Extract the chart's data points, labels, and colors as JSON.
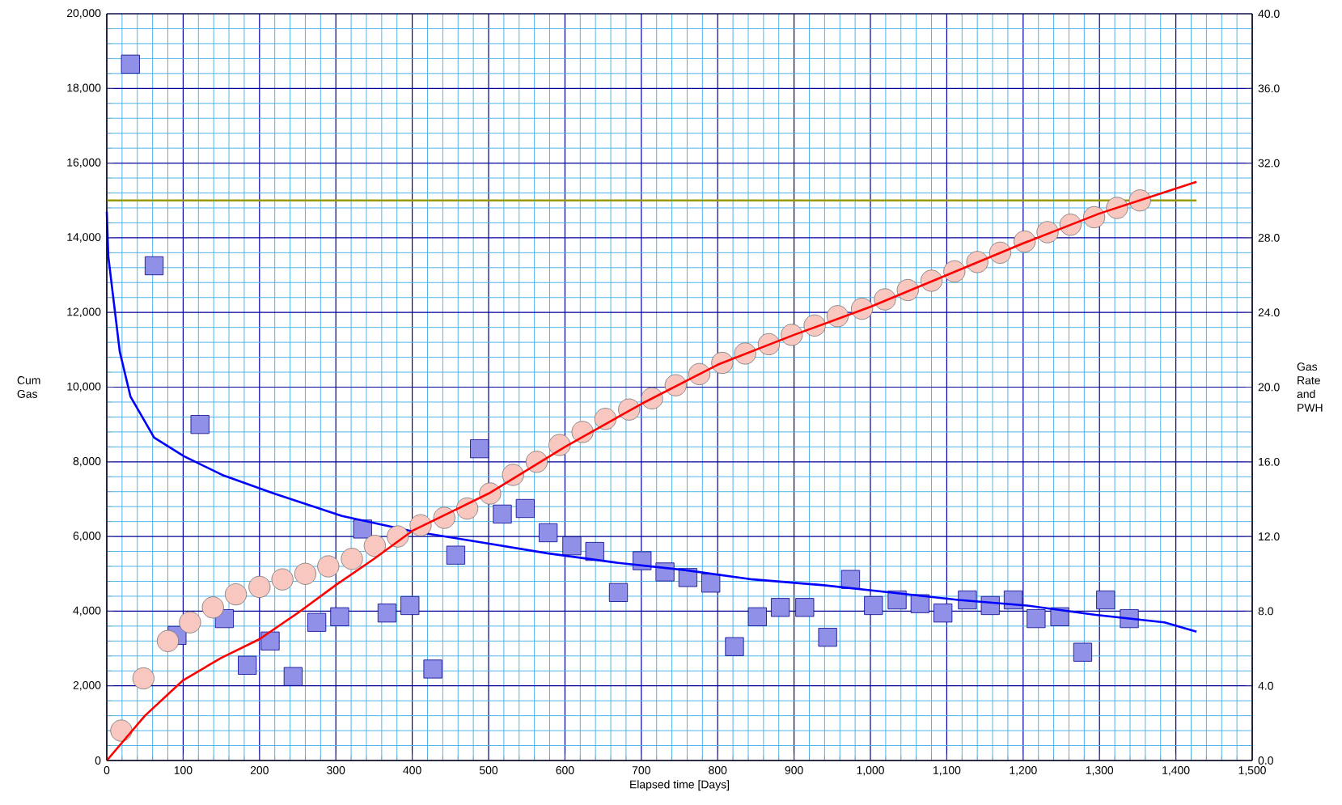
{
  "chart_data": {
    "type": "scatter",
    "xlabel": "Elapsed time [Days]",
    "ylabel": "Cum Gas",
    "y2label": "Gas Rate and PWH",
    "xlim": [
      0,
      1500
    ],
    "ylim": [
      0,
      20000
    ],
    "y2lim": [
      0,
      40
    ],
    "xticks": [
      0,
      {
        "value": 20,
        "label": null
      },
      {
        "value": 40,
        "label": null
      },
      {
        "value": 60,
        "label": null
      },
      {
        "value": 80,
        "label": null
      },
      100,
      {
        "value": 120,
        "label": null
      },
      {
        "value": 140,
        "label": null
      },
      {
        "value": 160,
        "label": null
      },
      {
        "value": 180,
        "label": null
      },
      200,
      {
        "value": 220,
        "label": null
      },
      {
        "value": 240,
        "label": null
      },
      {
        "value": 260,
        "label": null
      },
      {
        "value": 280,
        "label": null
      },
      300,
      {
        "value": 320,
        "label": null
      },
      {
        "value": 340,
        "label": null
      },
      {
        "value": 360,
        "label": null
      },
      {
        "value": 380,
        "label": null
      },
      400,
      {
        "value": 420,
        "label": null
      },
      {
        "value": 440,
        "label": null
      },
      {
        "value": 460,
        "label": null
      },
      {
        "value": 480,
        "label": null
      },
      500,
      {
        "value": 520,
        "label": null
      },
      {
        "value": 540,
        "label": null
      },
      {
        "value": 560,
        "label": null
      },
      {
        "value": 580,
        "label": null
      },
      600,
      {
        "value": 620,
        "label": null
      },
      {
        "value": 640,
        "label": null
      },
      {
        "value": 660,
        "label": null
      },
      {
        "value": 680,
        "label": null
      },
      700,
      {
        "value": 720,
        "label": null
      },
      {
        "value": 740,
        "label": null
      },
      {
        "value": 760,
        "label": null
      },
      {
        "value": 780,
        "label": null
      },
      800,
      {
        "value": 820,
        "label": null
      },
      {
        "value": 840,
        "label": null
      },
      {
        "value": 860,
        "label": null
      },
      {
        "value": 880,
        "label": null
      },
      900,
      {
        "value": 920,
        "label": null
      },
      {
        "value": 940,
        "label": null
      },
      {
        "value": 960,
        "label": null
      },
      {
        "value": 980,
        "label": null
      },
      {
        "value": 1000,
        "label": "1,000"
      },
      {
        "value": 1020,
        "label": null
      },
      {
        "value": 1040,
        "label": null
      },
      {
        "value": 1060,
        "label": null
      },
      {
        "value": 1080,
        "label": null
      },
      {
        "value": 1100,
        "label": "1,100"
      },
      {
        "value": 1120,
        "label": null
      },
      {
        "value": 1140,
        "label": null
      },
      {
        "value": 1160,
        "label": null
      },
      {
        "value": 1180,
        "label": null
      },
      {
        "value": 1200,
        "label": "1,200"
      },
      {
        "value": 1220,
        "label": null
      },
      {
        "value": 1240,
        "label": null
      },
      {
        "value": 1260,
        "label": null
      },
      {
        "value": 1280,
        "label": null
      },
      {
        "value": 1300,
        "label": "1,300"
      },
      {
        "value": 1320,
        "label": null
      },
      {
        "value": 1340,
        "label": null
      },
      {
        "value": 1360,
        "label": null
      },
      {
        "value": 1380,
        "label": null
      },
      {
        "value": 1400,
        "label": "1,400"
      },
      {
        "value": 1420,
        "label": null
      },
      {
        "value": 1440,
        "label": null
      },
      {
        "value": 1460,
        "label": null
      },
      {
        "value": 1480,
        "label": null
      },
      {
        "value": 1500,
        "label": "1,500"
      }
    ],
    "yticks": [
      0,
      {
        "value": 400,
        "label": null
      },
      {
        "value": 800,
        "label": null
      },
      {
        "value": 1200,
        "label": null
      },
      {
        "value": 1600,
        "label": null
      },
      {
        "value": 2000,
        "label": "2,000"
      },
      {
        "value": 2400,
        "label": null
      },
      {
        "value": 2800,
        "label": null
      },
      {
        "value": 3200,
        "label": null
      },
      {
        "value": 3600,
        "label": null
      },
      {
        "value": 4000,
        "label": "4,000"
      },
      {
        "value": 4400,
        "label": null
      },
      {
        "value": 4800,
        "label": null
      },
      {
        "value": 5200,
        "label": null
      },
      {
        "value": 5600,
        "label": null
      },
      {
        "value": 6000,
        "label": "6,000"
      },
      {
        "value": 6400,
        "label": null
      },
      {
        "value": 6800,
        "label": null
      },
      {
        "value": 7200,
        "label": null
      },
      {
        "value": 7600,
        "label": null
      },
      {
        "value": 8000,
        "label": "8,000"
      },
      {
        "value": 8400,
        "label": null
      },
      {
        "value": 8800,
        "label": null
      },
      {
        "value": 9200,
        "label": null
      },
      {
        "value": 9600,
        "label": null
      },
      {
        "value": 10000,
        "label": "10,000"
      },
      {
        "value": 10400,
        "label": null
      },
      {
        "value": 10800,
        "label": null
      },
      {
        "value": 11200,
        "label": null
      },
      {
        "value": 11600,
        "label": null
      },
      {
        "value": 12000,
        "label": "12,000"
      },
      {
        "value": 12400,
        "label": null
      },
      {
        "value": 12800,
        "label": null
      },
      {
        "value": 13200,
        "label": null
      },
      {
        "value": 13600,
        "label": null
      },
      {
        "value": 14000,
        "label": "14,000"
      },
      {
        "value": 14400,
        "label": null
      },
      {
        "value": 14800,
        "label": null
      },
      {
        "value": 15200,
        "label": null
      },
      {
        "value": 15600,
        "label": null
      },
      {
        "value": 16000,
        "label": "16,000"
      },
      {
        "value": 16400,
        "label": null
      },
      {
        "value": 16800,
        "label": null
      },
      {
        "value": 17200,
        "label": null
      },
      {
        "value": 17600,
        "label": null
      },
      {
        "value": 18000,
        "label": "18,000"
      },
      {
        "value": 18400,
        "label": null
      },
      {
        "value": 18800,
        "label": null
      },
      {
        "value": 19200,
        "label": null
      },
      {
        "value": 19600,
        "label": null
      },
      {
        "value": 20000,
        "label": "20,000"
      }
    ],
    "y2ticks": [
      {
        "value": 0,
        "label": "0.0"
      },
      {
        "value": 4,
        "label": "4.0"
      },
      {
        "value": 8,
        "label": "8.0"
      },
      {
        "value": 12,
        "label": "12.0"
      },
      {
        "value": 16,
        "label": "16.0"
      },
      {
        "value": 20,
        "label": "20.0"
      },
      {
        "value": 24,
        "label": "24.0"
      },
      {
        "value": 28,
        "label": "28.0"
      },
      {
        "value": 32,
        "label": "32.0"
      },
      {
        "value": 36,
        "label": "36.0"
      },
      {
        "value": 40,
        "label": "40.0"
      }
    ],
    "grid": true,
    "series": [
      {
        "type": "line",
        "color": "#999900",
        "x": [
          0,
          1427
        ],
        "values": [
          15000,
          15000
        ]
      },
      {
        "marker": "square",
        "axis": "y2",
        "color": "#9090e8",
        "x": [
          31,
          62,
          92,
          122,
          154,
          184,
          214,
          244,
          275,
          305,
          335,
          367,
          397,
          427,
          457,
          488,
          518,
          548,
          578,
          609,
          639,
          670,
          701,
          731,
          761,
          791,
          822,
          852,
          882,
          914,
          944,
          974,
          1004,
          1035,
          1065,
          1095,
          1127,
          1157,
          1187,
          1217,
          1248,
          1278,
          1308,
          1339
        ],
        "values": [
          37.3,
          26.5,
          6.7,
          18.0,
          7.6,
          5.1,
          6.4,
          4.5,
          7.4,
          7.7,
          12.4,
          7.9,
          8.3,
          4.9,
          11.0,
          16.7,
          13.2,
          13.5,
          12.2,
          11.5,
          11.2,
          9.0,
          10.7,
          10.1,
          9.8,
          9.5,
          6.1,
          7.7,
          8.2,
          8.2,
          6.6,
          9.7,
          8.3,
          8.6,
          8.4,
          7.9,
          8.6,
          8.3,
          8.6,
          7.6,
          7.7,
          5.8,
          8.6,
          7.6
        ]
      },
      {
        "type": "line",
        "axis": "y2",
        "color": "#0000ff",
        "x": [
          0,
          2,
          17,
          31,
          62,
          101,
          151,
          219,
          308,
          398,
          488,
          577,
          667,
          757,
          846,
          936,
          1026,
          1115,
          1205,
          1295,
          1385,
          1427
        ],
        "values": [
          29.4,
          27.0,
          21.9,
          19.5,
          17.3,
          16.3,
          15.3,
          14.3,
          13.1,
          12.3,
          11.7,
          11.1,
          10.6,
          10.2,
          9.7,
          9.4,
          9.0,
          8.6,
          8.3,
          7.8,
          7.4,
          6.9
        ]
      },
      {
        "marker": "circle",
        "color": "#f8c8c0",
        "x": [
          19,
          48,
          80,
          109,
          139,
          169,
          200,
          230,
          260,
          290,
          321,
          351,
          381,
          411,
          442,
          472,
          502,
          532,
          563,
          593,
          623,
          653,
          684,
          714,
          745,
          776,
          806,
          836,
          867,
          897,
          927,
          957,
          989,
          1019,
          1049,
          1080,
          1110,
          1140,
          1170,
          1202,
          1232,
          1262,
          1293,
          1323,
          1353
        ],
        "values": [
          800,
          2200,
          3200,
          3700,
          4100,
          4450,
          4650,
          4850,
          5000,
          5200,
          5400,
          5750,
          6000,
          6300,
          6500,
          6750,
          7150,
          7650,
          8000,
          8450,
          8800,
          9150,
          9400,
          9700,
          10050,
          10350,
          10650,
          10900,
          11150,
          11400,
          11650,
          11900,
          12100,
          12350,
          12600,
          12850,
          13100,
          13350,
          13600,
          13900,
          14150,
          14350,
          14550,
          14800,
          15000
        ]
      },
      {
        "type": "line",
        "color": "#ff0000",
        "x": [
          0,
          50,
          100,
          150,
          200,
          250,
          300,
          350,
          400,
          450,
          500,
          600,
          700,
          800,
          900,
          1000,
          1100,
          1200,
          1300,
          1427
        ],
        "values": [
          0,
          1200,
          2150,
          2750,
          3250,
          3950,
          4700,
          5400,
          6150,
          6650,
          7150,
          8400,
          9550,
          10600,
          11400,
          12150,
          13000,
          13850,
          14650,
          15500
        ]
      }
    ]
  }
}
